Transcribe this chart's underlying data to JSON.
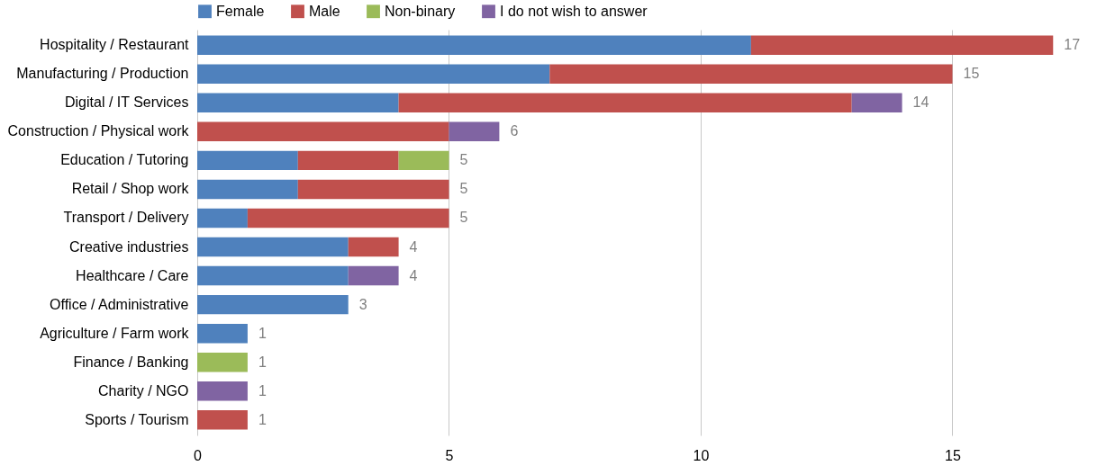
{
  "chart_data": {
    "type": "bar",
    "orientation": "horizontal",
    "stacked": true,
    "categories": [
      "Hospitality / Restaurant",
      "Manufacturing / Production",
      "Digital / IT Services",
      "Construction / Physical work",
      "Education / Tutoring",
      "Retail / Shop work",
      "Transport / Delivery",
      "Creative industries",
      "Healthcare / Care",
      "Office / Administrative",
      "Agriculture / Farm work",
      "Finance / Banking",
      "Charity / NGO",
      "Sports / Tourism"
    ],
    "series": [
      {
        "name": "Female",
        "color": "#4f81bd",
        "values": [
          11,
          7,
          4,
          null,
          2,
          2,
          1,
          3,
          3,
          3,
          1,
          null,
          null,
          null
        ]
      },
      {
        "name": "Male",
        "color": "#c0504d",
        "values": [
          6,
          8,
          9,
          5,
          2,
          3,
          4,
          1,
          null,
          null,
          null,
          null,
          null,
          1
        ]
      },
      {
        "name": "Non-binary",
        "color": "#9bbb59",
        "values": [
          null,
          null,
          null,
          null,
          1,
          null,
          null,
          null,
          null,
          null,
          null,
          1,
          null,
          null
        ]
      },
      {
        "name": "I do not wish to answer",
        "color": "#8064a2",
        "values": [
          null,
          null,
          1,
          1,
          null,
          null,
          null,
          null,
          1,
          null,
          null,
          null,
          1,
          null
        ]
      }
    ],
    "totals": [
      "17",
      "15",
      "14",
      "6",
      "5",
      "5",
      "5",
      "4",
      "4",
      "3",
      "1",
      "1",
      "1",
      "1"
    ],
    "xlim": [
      0,
      17.8
    ],
    "xticks": [
      0,
      5,
      10,
      15
    ],
    "grid": "x",
    "legend": "top"
  }
}
